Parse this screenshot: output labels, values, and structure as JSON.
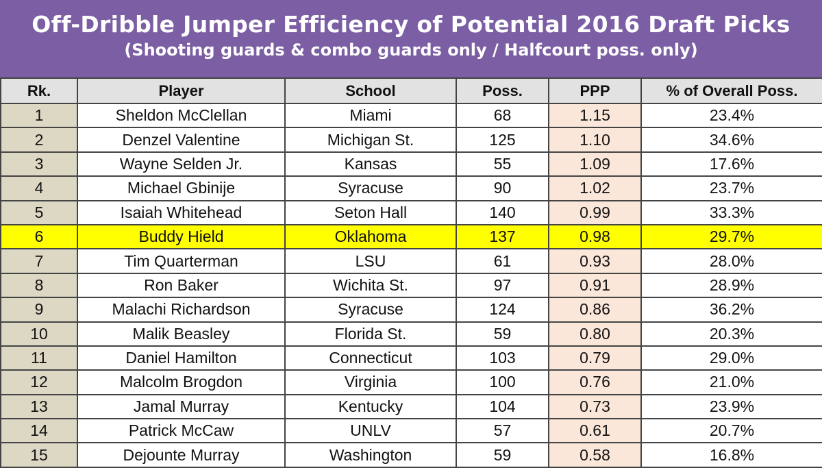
{
  "header": {
    "title": "Off-Dribble Jumper Efficiency of Potential 2016 Draft Picks",
    "subtitle": "(Shooting guards & combo guards only / Halfcourt poss. only)"
  },
  "table": {
    "columns": [
      "Rk.",
      "Player",
      "School",
      "Poss.",
      "PPP",
      "% of Overall Poss."
    ],
    "rows": [
      [
        "1",
        "Sheldon McClellan",
        "Miami",
        "68",
        "1.15",
        "23.4%"
      ],
      [
        "2",
        "Denzel Valentine",
        "Michigan St.",
        "125",
        "1.10",
        "34.6%"
      ],
      [
        "3",
        "Wayne Selden Jr.",
        "Kansas",
        "55",
        "1.09",
        "17.6%"
      ],
      [
        "4",
        "Michael Gbinije",
        "Syracuse",
        "90",
        "1.02",
        "23.7%"
      ],
      [
        "5",
        "Isaiah Whitehead",
        "Seton Hall",
        "140",
        "0.99",
        "33.3%"
      ],
      [
        "6",
        "Buddy Hield",
        "Oklahoma",
        "137",
        "0.98",
        "29.7%"
      ],
      [
        "7",
        "Tim Quarterman",
        "LSU",
        "61",
        "0.93",
        "28.0%"
      ],
      [
        "8",
        "Ron Baker",
        "Wichita St.",
        "97",
        "0.91",
        "28.9%"
      ],
      [
        "9",
        "Malachi Richardson",
        "Syracuse",
        "124",
        "0.86",
        "36.2%"
      ],
      [
        "10",
        "Malik Beasley",
        "Florida St.",
        "59",
        "0.80",
        "20.3%"
      ],
      [
        "11",
        "Daniel Hamilton",
        "Connecticut",
        "103",
        "0.79",
        "29.0%"
      ],
      [
        "12",
        "Malcolm Brogdon",
        "Virginia",
        "100",
        "0.76",
        "21.0%"
      ],
      [
        "13",
        "Jamal Murray",
        "Kentucky",
        "104",
        "0.73",
        "23.9%"
      ],
      [
        "14",
        "Patrick McCaw",
        "UNLV",
        "57",
        "0.61",
        "20.7%"
      ],
      [
        "15",
        "Dejounte Murray",
        "Washington",
        "59",
        "0.58",
        "16.8%"
      ]
    ]
  }
}
